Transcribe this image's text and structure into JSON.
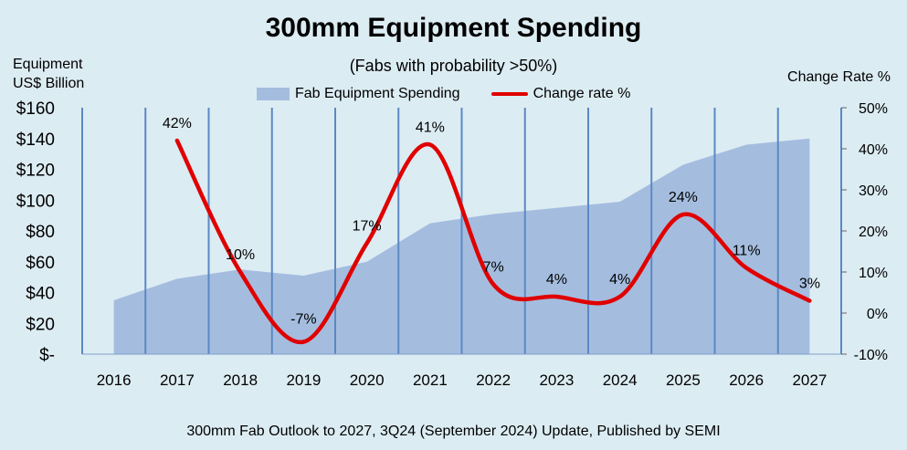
{
  "chart_data": {
    "type": "area+line",
    "title": "300mm Equipment Spending",
    "subtitle": "(Fabs with probability >50%)",
    "left_axis_label_line1": "Equipment",
    "left_axis_label_line2": "US$ Billion",
    "right_axis_label": "Change Rate %",
    "categories": [
      "2016",
      "2017",
      "2018",
      "2019",
      "2020",
      "2021",
      "2022",
      "2023",
      "2024",
      "2025",
      "2026",
      "2027"
    ],
    "series": [
      {
        "name": "Fab Equipment Spending",
        "axis": "left",
        "kind": "area",
        "color": "#a4bddf",
        "values": [
          35,
          49,
          55,
          51,
          60,
          85,
          91,
          95,
          99,
          123,
          136,
          140
        ]
      },
      {
        "name": "Change rate %",
        "axis": "right",
        "kind": "line",
        "color": "#e00000",
        "values": [
          null,
          42,
          10,
          -7,
          17,
          41,
          7,
          4,
          4,
          24,
          11,
          3
        ]
      }
    ],
    "data_labels": [
      "",
      "42%",
      "10%",
      "-7%",
      "17%",
      "41%",
      "7%",
      "4%",
      "4%",
      "24%",
      "11%",
      "3%"
    ],
    "left_ticks": [
      "$-",
      "$20",
      "$40",
      "$60",
      "$80",
      "$100",
      "$120",
      "$140",
      "$160"
    ],
    "right_ticks": [
      "-10%",
      "0%",
      "10%",
      "20%",
      "30%",
      "40%",
      "50%"
    ],
    "ylim_left": [
      0,
      160
    ],
    "ylim_right": [
      -10,
      50
    ],
    "grid": "vertical",
    "legend_position": "top-center"
  },
  "footer": "300mm Fab Outlook to 2027, 3Q24 (September 2024) Update, Published by SEMI"
}
